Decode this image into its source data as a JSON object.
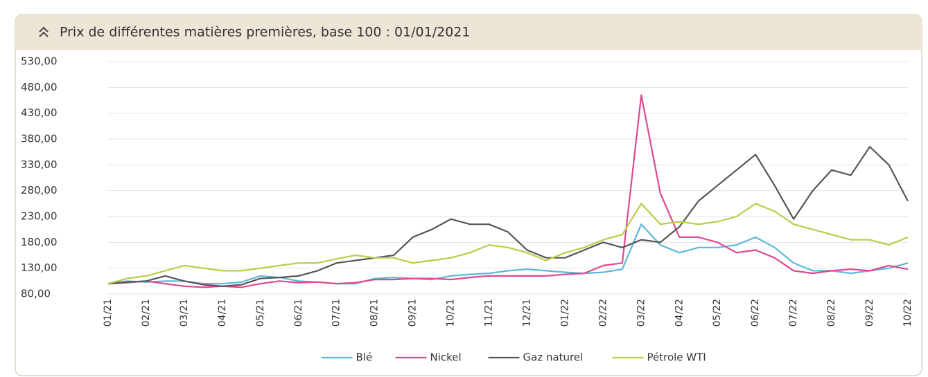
{
  "chart_data": {
    "type": "line",
    "title": "Prix de différentes matières premières, base 100 : 01/01/2021",
    "categories": [
      "01/21",
      null,
      "02/21",
      null,
      "03/21",
      null,
      "04/21",
      null,
      "05/21",
      null,
      "06/21",
      null,
      "07/21",
      null,
      "08/21",
      null,
      "09/21",
      null,
      "10/21",
      null,
      "11/21",
      null,
      "12/21",
      null,
      "01/22",
      null,
      "02/22",
      null,
      "03/22",
      null,
      "04/22",
      null,
      "05/22",
      null,
      "06/22",
      null,
      "07/22",
      null,
      "08/22",
      null,
      "09/22",
      null,
      "10/22"
    ],
    "series": [
      {
        "name": "Blé",
        "color": "#5bb8d8",
        "values": [
          100,
          105,
          103,
          105,
          105,
          100,
          100,
          103,
          115,
          112,
          105,
          103,
          100,
          100,
          110,
          112,
          110,
          108,
          115,
          118,
          120,
          125,
          128,
          125,
          122,
          120,
          122,
          128,
          215,
          175,
          160,
          170,
          170,
          175,
          190,
          170,
          140,
          125,
          125,
          120,
          125,
          130,
          140
        ]
      },
      {
        "name": "Nickel",
        "color": "#e0478f",
        "values": [
          100,
          102,
          105,
          100,
          95,
          93,
          95,
          93,
          100,
          105,
          102,
          103,
          100,
          102,
          108,
          108,
          110,
          110,
          108,
          112,
          115,
          115,
          115,
          115,
          118,
          120,
          135,
          140,
          465,
          275,
          190,
          190,
          180,
          160,
          165,
          150,
          125,
          120,
          125,
          128,
          125,
          135,
          128
        ]
      },
      {
        "name": "Gaz naturel",
        "color": "#555555",
        "values": [
          100,
          103,
          105,
          115,
          105,
          98,
          95,
          98,
          110,
          112,
          115,
          125,
          140,
          145,
          150,
          155,
          190,
          205,
          225,
          215,
          215,
          200,
          165,
          150,
          150,
          165,
          180,
          170,
          185,
          180,
          210,
          260,
          290,
          320,
          350,
          290,
          225,
          280,
          320,
          310,
          365,
          330,
          260
        ]
      },
      {
        "name": "Pétrole WTI",
        "color": "#b5cf45",
        "values": [
          100,
          110,
          115,
          125,
          135,
          130,
          125,
          125,
          130,
          135,
          140,
          140,
          148,
          155,
          150,
          150,
          140,
          145,
          150,
          160,
          175,
          170,
          160,
          145,
          160,
          170,
          185,
          195,
          255,
          215,
          220,
          215,
          220,
          230,
          255,
          240,
          215,
          205,
          195,
          185,
          185,
          175,
          190
        ]
      }
    ],
    "ylim": [
      80,
      530
    ],
    "yticks": [
      {
        "value": 80,
        "label": "80,00"
      },
      {
        "value": 130,
        "label": "130,00"
      },
      {
        "value": 180,
        "label": "180,00"
      },
      {
        "value": 230,
        "label": "230,00"
      },
      {
        "value": 280,
        "label": "280,00"
      },
      {
        "value": 330,
        "label": "330,00"
      },
      {
        "value": 380,
        "label": "380,00"
      },
      {
        "value": 430,
        "label": "430,00"
      },
      {
        "value": 480,
        "label": "480,00"
      },
      {
        "value": 530,
        "label": "530,00"
      }
    ],
    "grid": true
  }
}
